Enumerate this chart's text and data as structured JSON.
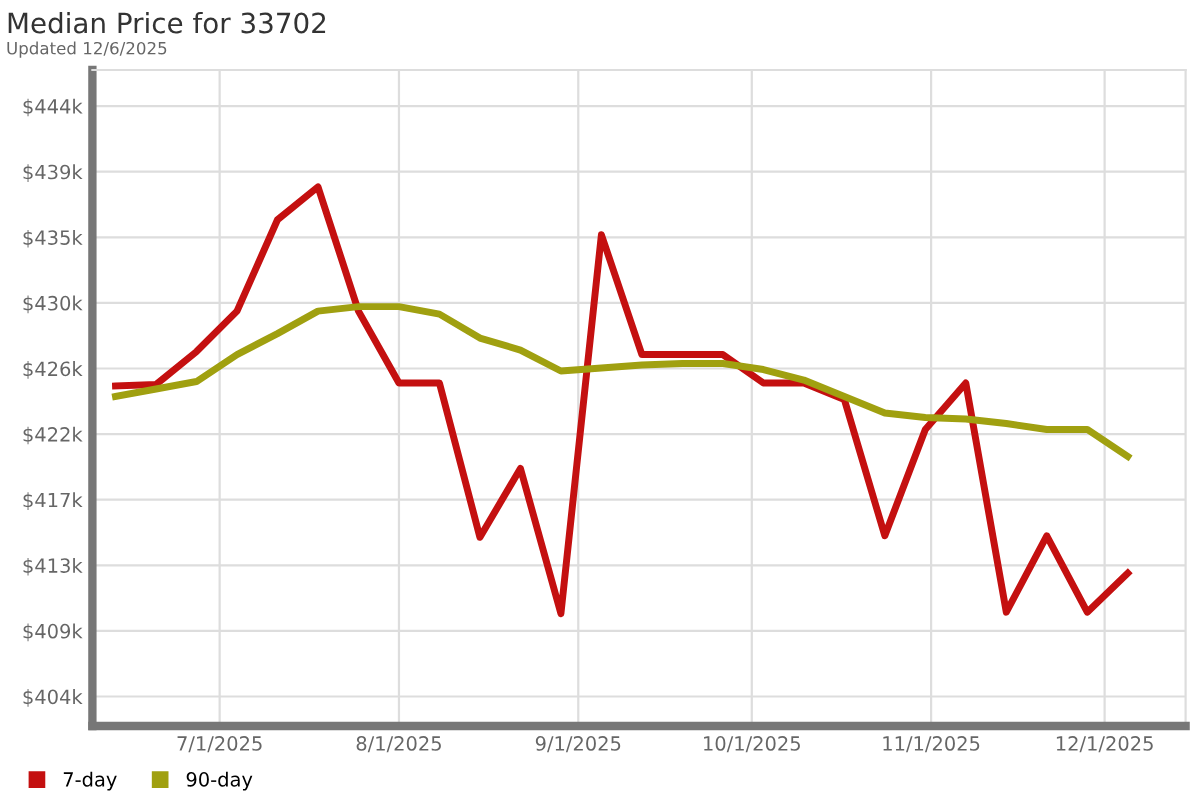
{
  "chart_data": {
    "type": "line",
    "title": "Median Price for 33702",
    "subtitle": "Updated 12/6/2025",
    "x": [
      "2025-06-13",
      "2025-06-20",
      "2025-06-27",
      "2025-07-04",
      "2025-07-11",
      "2025-07-18",
      "2025-07-25",
      "2025-08-01",
      "2025-08-08",
      "2025-08-15",
      "2025-08-22",
      "2025-08-29",
      "2025-09-05",
      "2025-09-12",
      "2025-09-19",
      "2025-09-26",
      "2025-10-03",
      "2025-10-10",
      "2025-10-17",
      "2025-10-24",
      "2025-10-31",
      "2025-11-07",
      "2025-11-14",
      "2025-11-21",
      "2025-11-28",
      "2025-12-05"
    ],
    "series": [
      {
        "name": "7-day",
        "color": "#c41010",
        "values": [
          424.9,
          425.0,
          427.2,
          429.9,
          436.0,
          438.2,
          429.9,
          425.1,
          425.1,
          414.8,
          419.4,
          409.7,
          435.0,
          427.0,
          427.0,
          427.0,
          425.1,
          425.1,
          424.0,
          414.9,
          422.0,
          425.1,
          409.8,
          414.9,
          409.8,
          412.4
        ]
      },
      {
        "name": "90-day",
        "color": "#a0a010",
        "values": [
          424.2,
          424.7,
          425.2,
          427.0,
          428.4,
          429.9,
          430.2,
          430.2,
          429.7,
          428.1,
          427.3,
          425.9,
          426.1,
          426.3,
          426.4,
          426.4,
          426.0,
          425.3,
          424.2,
          423.1,
          422.8,
          422.7,
          422.4,
          422.0,
          422.0,
          420.2
        ]
      }
    ],
    "xlim": [
      "2025-06-09",
      "2025-12-15"
    ],
    "xticks": [
      {
        "value": "2025-07-01",
        "label": "7/1/2025"
      },
      {
        "value": "2025-08-01",
        "label": "8/1/2025"
      },
      {
        "value": "2025-09-01",
        "label": "9/1/2025"
      },
      {
        "value": "2025-10-01",
        "label": "10/1/2025"
      },
      {
        "value": "2025-11-01",
        "label": "11/1/2025"
      },
      {
        "value": "2025-12-01",
        "label": "12/1/2025"
      }
    ],
    "ylim": [
      402.2,
      446.0
    ],
    "yticks": [
      {
        "value": 404.17,
        "label": "$404k"
      },
      {
        "value": 408.55,
        "label": "$409k"
      },
      {
        "value": 412.93,
        "label": "$413k"
      },
      {
        "value": 417.31,
        "label": "$417k"
      },
      {
        "value": 421.69,
        "label": "$422k"
      },
      {
        "value": 426.07,
        "label": "$426k"
      },
      {
        "value": 430.45,
        "label": "$430k"
      },
      {
        "value": 434.83,
        "label": "$435k"
      },
      {
        "value": 439.21,
        "label": "$439k"
      },
      {
        "value": 443.59,
        "label": "$444k"
      }
    ],
    "grid": true,
    "legend": "bottom left",
    "marker": "none",
    "line_style": "solid"
  }
}
